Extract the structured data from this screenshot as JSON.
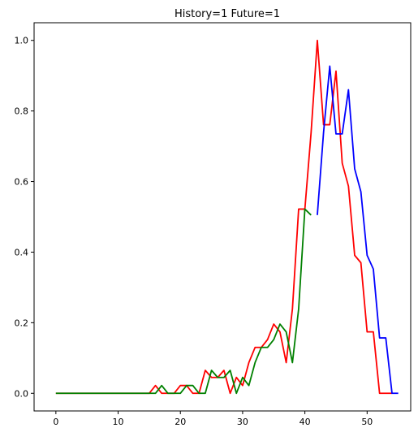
{
  "chart_data": {
    "type": "line",
    "title": "History=1 Future=1",
    "xlabel": "",
    "ylabel": "",
    "xlim": [
      -3.5,
      57
    ],
    "ylim": [
      -0.05,
      1.05
    ],
    "xticks": [
      0,
      10,
      20,
      30,
      40,
      50
    ],
    "yticks": [
      0.0,
      0.2,
      0.4,
      0.6,
      0.8,
      1.0
    ],
    "grid": false,
    "series": [
      {
        "color": "#ff0000",
        "x": [
          0,
          1,
          2,
          3,
          4,
          5,
          6,
          7,
          8,
          9,
          10,
          11,
          12,
          13,
          14,
          15,
          16,
          17,
          18,
          19,
          20,
          21,
          22,
          23,
          24,
          25,
          26,
          27,
          28,
          29,
          30,
          31,
          32,
          33,
          34,
          35,
          36,
          37,
          38,
          39,
          40,
          41,
          42,
          43,
          44,
          45,
          46,
          47,
          48,
          49,
          50,
          51,
          52,
          53,
          54
        ],
        "y": [
          0,
          0,
          0,
          0,
          0,
          0,
          0,
          0,
          0,
          0,
          0,
          0,
          0,
          0,
          0,
          0,
          0.022,
          0,
          0,
          0,
          0.022,
          0.022,
          0,
          0,
          0.065,
          0.045,
          0.045,
          0.065,
          0,
          0.045,
          0.022,
          0.087,
          0.13,
          0.13,
          0.152,
          0.196,
          0.174,
          0.087,
          0.239,
          0.522,
          0.522,
          0.739,
          1.0,
          0.761,
          0.761,
          0.913,
          0.652,
          0.587,
          0.391,
          0.37,
          0.174,
          0.174,
          0,
          0,
          0
        ]
      },
      {
        "color": "#008000",
        "x": [
          0,
          1,
          2,
          3,
          4,
          5,
          6,
          7,
          8,
          9,
          10,
          11,
          12,
          13,
          14,
          15,
          16,
          17,
          18,
          19,
          20,
          21,
          22,
          23,
          24,
          25,
          26,
          27,
          28,
          29,
          30,
          31,
          32,
          33,
          34,
          35,
          36,
          37,
          38,
          39,
          40,
          41
        ],
        "y": [
          0,
          0,
          0,
          0,
          0,
          0,
          0,
          0,
          0,
          0,
          0,
          0,
          0,
          0,
          0,
          0,
          0,
          0.022,
          0,
          0,
          0,
          0.022,
          0.022,
          0,
          0,
          0.065,
          0.045,
          0.045,
          0.065,
          0,
          0.045,
          0.022,
          0.087,
          0.13,
          0.13,
          0.152,
          0.196,
          0.174,
          0.087,
          0.239,
          0.522,
          0.505
        ]
      },
      {
        "color": "#0000ff",
        "x": [
          42,
          43,
          44,
          45,
          46,
          47,
          48,
          49,
          50,
          51,
          52,
          53,
          54,
          55
        ],
        "y": [
          0.505,
          0.739,
          0.927,
          0.735,
          0.735,
          0.86,
          0.636,
          0.571,
          0.391,
          0.352,
          0.157,
          0.157,
          0,
          0
        ]
      }
    ]
  }
}
